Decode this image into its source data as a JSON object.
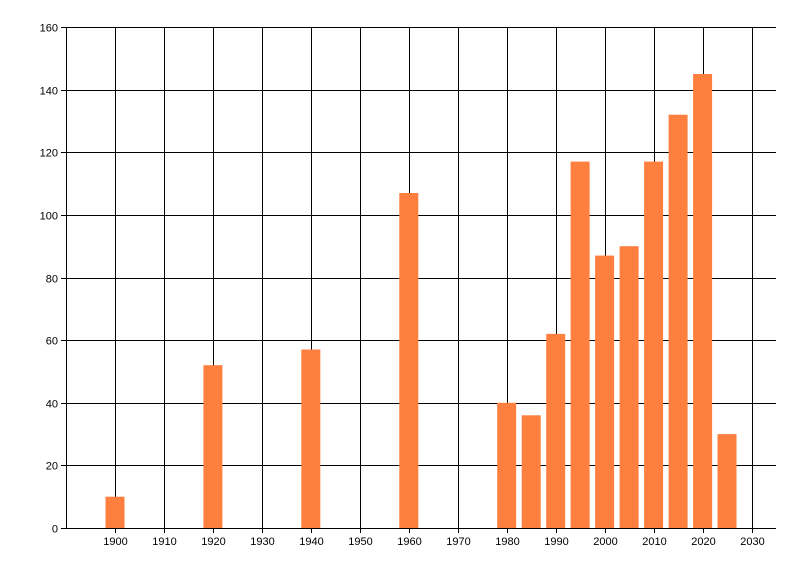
{
  "chart_data": {
    "type": "bar",
    "title": "",
    "xlabel": "",
    "ylabel": "",
    "x": [
      1900,
      1920,
      1940,
      1960,
      1980,
      1985,
      1990,
      1995,
      2000,
      2005,
      2010,
      2015,
      2020,
      2025
    ],
    "values": [
      10,
      52,
      57,
      107,
      40,
      36,
      62,
      117,
      87,
      90,
      117,
      132,
      145,
      30
    ],
    "xlim": [
      1890,
      2035
    ],
    "ylim": [
      0,
      160
    ],
    "x_ticks": [
      1900,
      1910,
      1920,
      1930,
      1940,
      1950,
      1960,
      1970,
      1980,
      1990,
      2000,
      2010,
      2020,
      2030
    ],
    "y_ticks": [
      0,
      20,
      40,
      60,
      80,
      100,
      120,
      140,
      160
    ],
    "grid": true,
    "legend": "none",
    "bar_color": "#FF7F3F",
    "grid_color": "#000000",
    "background": "#FFFFFF"
  }
}
